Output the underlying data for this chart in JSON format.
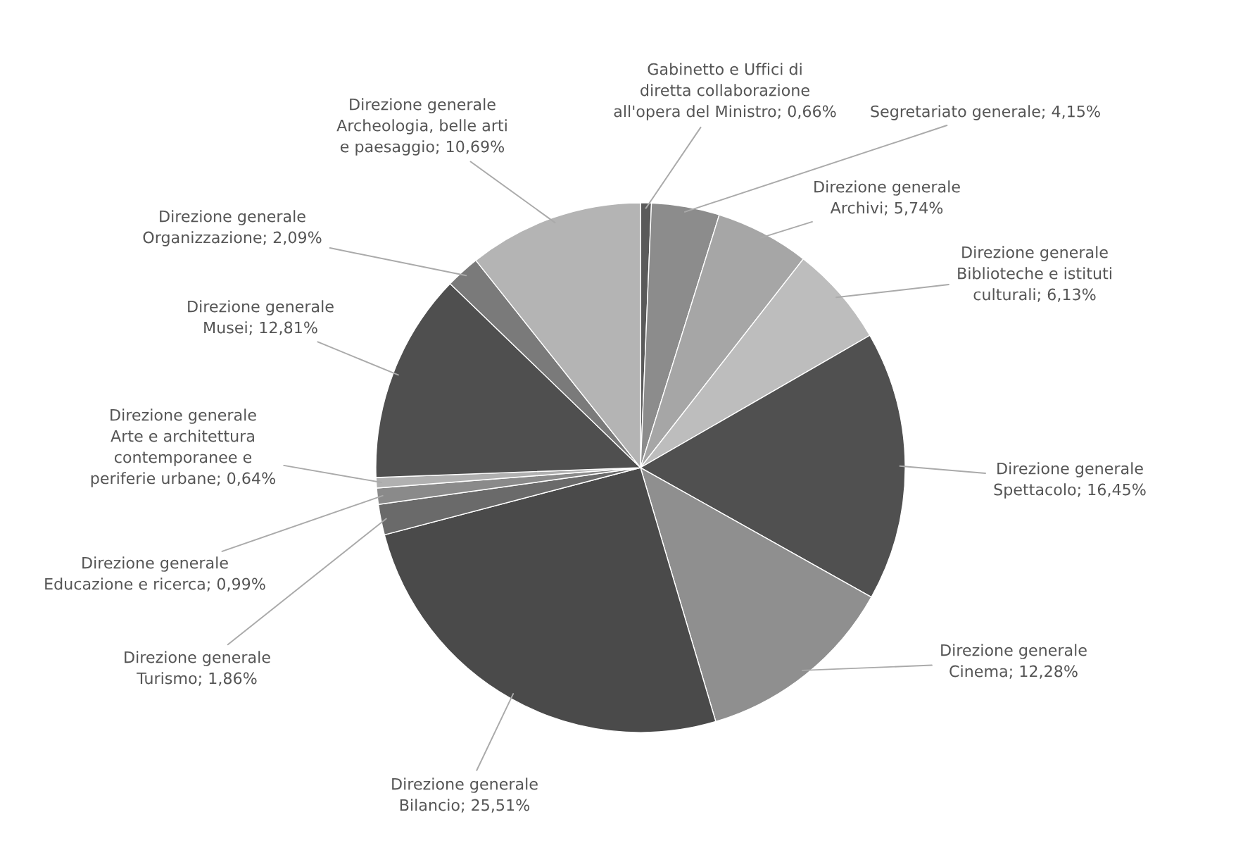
{
  "chart_data": {
    "type": "pie",
    "categories": [
      "Gabinetto e Uffici di\ndiretta collaborazione\nall'opera del Ministro",
      "Segretariato generale",
      "Direzione generale\nArchivi",
      "Direzione generale\nBiblioteche e istituti\nculturali",
      "Direzione generale\nSpettacolo",
      "Direzione generale\nCinema",
      "Direzione generale\nBilancio",
      "Direzione generale\nTurismo",
      "Direzione generale\nEducazione e ricerca",
      "Direzione generale\nArte e architettura\ncontemporanee e\nperiferie urbane",
      "Direzione generale\nMusei",
      "Direzione generale\nOrganizzazione",
      "Direzione generale\nArcheologia, belle arti\ne paesaggio"
    ],
    "values": [
      0.66,
      4.15,
      5.74,
      6.13,
      16.45,
      12.28,
      25.51,
      1.86,
      0.99,
      0.64,
      12.81,
      2.09,
      10.69
    ],
    "value_labels": [
      "0,66%",
      "4,15%",
      "5,74%",
      "6,13%",
      "16,45%",
      "12,28%",
      "25,51%",
      "1,86%",
      "0,99%",
      "0,64%",
      "12,81%",
      "2,09%",
      "10,69%"
    ],
    "colors": [
      "#5a5a5a",
      "#8c8c8c",
      "#a6a6a6",
      "#bdbdbd",
      "#505050",
      "#8f8f8f",
      "#4a4a4a",
      "#6a6a6a",
      "#8a8a8a",
      "#b0b0b0",
      "#4f4f4f",
      "#7a7a7a",
      "#b4b4b4"
    ],
    "legend": false
  }
}
